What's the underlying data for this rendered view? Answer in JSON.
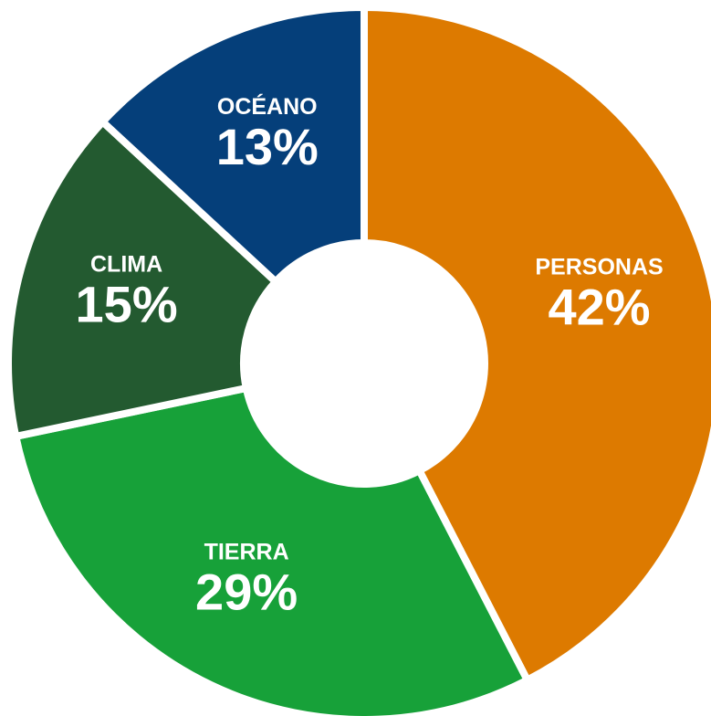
{
  "chart_data": {
    "type": "pie",
    "donut": true,
    "title": "",
    "start_angle_deg": 0,
    "direction": "clockwise",
    "slices": [
      {
        "label": "PERSONAS",
        "value": 42,
        "value_label": "42%",
        "color": "#DD7A00"
      },
      {
        "label": "TIERRA",
        "value": 29,
        "value_label": "29%",
        "color": "#17A139"
      },
      {
        "label": "CLIMA",
        "value": 15,
        "value_label": "15%",
        "color": "#235A30"
      },
      {
        "label": "OCÉANO",
        "value": 13,
        "value_label": "13%",
        "color": "#053F7A"
      }
    ]
  }
}
